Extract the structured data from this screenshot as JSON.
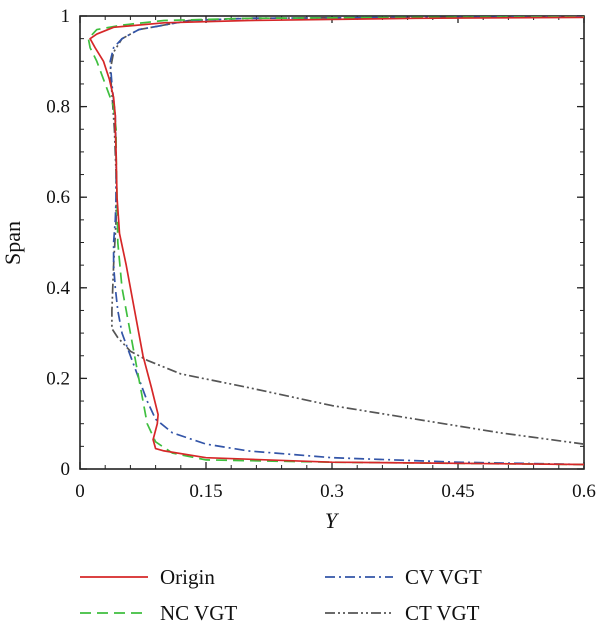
{
  "chart_data": {
    "type": "line",
    "title": "",
    "xlabel": "Y",
    "ylabel": "Span",
    "xlim": [
      0,
      0.6
    ],
    "ylim": [
      0,
      1
    ],
    "xticks": [
      0,
      0.15,
      0.3,
      0.45,
      0.6
    ],
    "xtick_labels": [
      "0",
      "0.15",
      "0.3",
      "0.45",
      "0.6"
    ],
    "yticks": [
      0,
      0.2,
      0.4,
      0.6,
      0.8,
      1
    ],
    "ytick_labels": [
      "0",
      "0.2",
      "0.4",
      "0.6",
      "0.8",
      "1"
    ],
    "grid": false,
    "legend_position": "bottom",
    "series": [
      {
        "name": "Origin",
        "color": "#d62728",
        "dash": "solid",
        "x": [
          0.6,
          0.3,
          0.15,
          0.1,
          0.09,
          0.087,
          0.092,
          0.093,
          0.085,
          0.075,
          0.065,
          0.055,
          0.047,
          0.046,
          0.044,
          0.043,
          0.042,
          0.042,
          0.04,
          0.035,
          0.028,
          0.018,
          0.012,
          0.02,
          0.04,
          0.1,
          0.2,
          0.4,
          0.6
        ],
        "y": [
          0.01,
          0.015,
          0.025,
          0.04,
          0.045,
          0.065,
          0.1,
          0.12,
          0.18,
          0.25,
          0.35,
          0.45,
          0.52,
          0.55,
          0.6,
          0.7,
          0.75,
          0.78,
          0.82,
          0.86,
          0.9,
          0.93,
          0.95,
          0.96,
          0.975,
          0.985,
          0.99,
          0.995,
          0.997
        ]
      },
      {
        "name": "NC VGT",
        "color": "#3fbf3f",
        "dash": "long-dash",
        "x": [
          0.6,
          0.3,
          0.15,
          0.11,
          0.09,
          0.08,
          0.075,
          0.07,
          0.06,
          0.05,
          0.045,
          0.044,
          0.043,
          0.043,
          0.04,
          0.03,
          0.02,
          0.012,
          0.01,
          0.02,
          0.05,
          0.1,
          0.2,
          0.4,
          0.6
        ],
        "y": [
          0.01,
          0.015,
          0.02,
          0.035,
          0.06,
          0.1,
          0.15,
          0.2,
          0.3,
          0.4,
          0.5,
          0.6,
          0.7,
          0.75,
          0.8,
          0.85,
          0.9,
          0.93,
          0.95,
          0.97,
          0.98,
          0.99,
          0.995,
          0.997,
          0.998
        ]
      },
      {
        "name": "CV VGT",
        "color": "#3355a8",
        "dash": "dash-dot",
        "x": [
          0.6,
          0.45,
          0.3,
          0.2,
          0.15,
          0.11,
          0.09,
          0.08,
          0.07,
          0.06,
          0.05,
          0.045,
          0.042,
          0.04,
          0.04,
          0.042,
          0.043,
          0.043,
          0.042,
          0.038,
          0.036,
          0.04,
          0.05,
          0.07,
          0.1,
          0.13,
          0.2,
          0.4,
          0.6
        ],
        "y": [
          0.01,
          0.015,
          0.025,
          0.04,
          0.055,
          0.08,
          0.11,
          0.15,
          0.2,
          0.25,
          0.3,
          0.35,
          0.4,
          0.45,
          0.5,
          0.55,
          0.6,
          0.7,
          0.78,
          0.85,
          0.9,
          0.93,
          0.95,
          0.97,
          0.98,
          0.99,
          0.995,
          0.997,
          0.998
        ]
      },
      {
        "name": "CT VGT",
        "color": "#555555",
        "dash": "dash-dot-dot",
        "x": [
          0.6,
          0.5,
          0.4,
          0.3,
          0.2,
          0.12,
          0.08,
          0.06,
          0.045,
          0.038,
          0.038,
          0.04,
          0.043,
          0.043,
          0.041,
          0.038,
          0.036,
          0.04,
          0.05,
          0.07,
          0.1,
          0.13,
          0.2,
          0.4,
          0.6
        ],
        "y": [
          0.055,
          0.08,
          0.11,
          0.14,
          0.18,
          0.21,
          0.24,
          0.26,
          0.29,
          0.31,
          0.35,
          0.45,
          0.55,
          0.65,
          0.75,
          0.83,
          0.88,
          0.92,
          0.95,
          0.97,
          0.98,
          0.99,
          0.995,
          0.997,
          0.998
        ]
      }
    ]
  }
}
